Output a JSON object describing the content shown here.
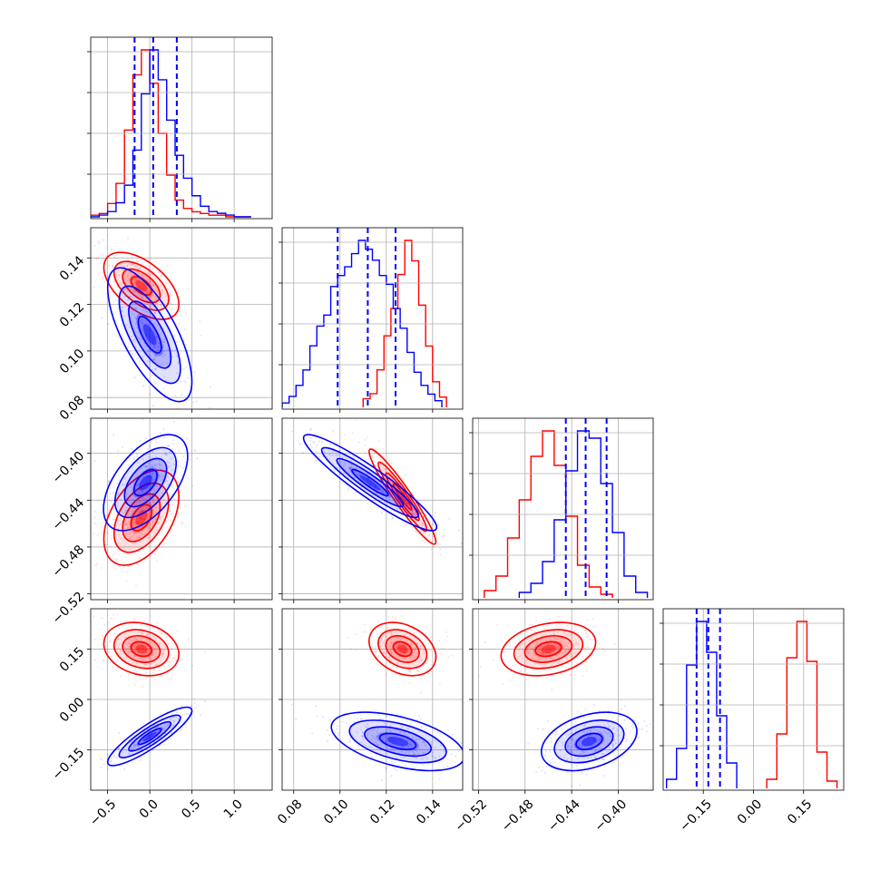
{
  "chart_data": {
    "type": "corner",
    "grid": true,
    "colors": {
      "red": "#ff0000",
      "blue": "#0000ff",
      "grid": "#b0b0b0"
    },
    "parameters": [
      {
        "id": "p0",
        "range": [
          -0.7,
          1.45
        ],
        "ticks": [
          "−0.5",
          "0.0",
          "0.5",
          "1.0"
        ],
        "tick_values": [
          -0.5,
          0.0,
          0.5,
          1.0
        ]
      },
      {
        "id": "p1",
        "range": [
          0.075,
          0.153
        ],
        "ticks": [
          "0.08",
          "0.10",
          "0.12",
          "0.14"
        ],
        "tick_values": [
          0.08,
          0.1,
          0.12,
          0.14
        ]
      },
      {
        "id": "p2",
        "range": [
          -0.525,
          -0.37
        ],
        "ticks": [
          "−0.52",
          "−0.48",
          "−0.44",
          "−0.40"
        ],
        "tick_values": [
          -0.52,
          -0.48,
          -0.44,
          -0.4
        ]
      },
      {
        "id": "p3",
        "range": [
          -0.27,
          0.27
        ],
        "ticks": [
          "−0.15",
          "0.00",
          "0.15"
        ],
        "tick_values": [
          -0.15,
          0.0,
          0.15
        ]
      }
    ],
    "series": [
      {
        "color": "#ff0000",
        "marginals": [
          {
            "edges": [
              -0.7,
              -0.6,
              -0.5,
              -0.4,
              -0.3,
              -0.2,
              -0.1,
              0.0,
              0.1,
              0.2,
              0.3,
              0.4,
              0.5,
              0.6,
              0.7,
              0.8,
              0.9,
              1.0,
              1.1,
              1.2
            ],
            "counts": [
              1,
              2,
              8,
              20,
              52,
              85,
              100,
              80,
              50,
              25,
              10,
              5,
              3,
              2,
              1,
              1,
              0,
              0,
              0
            ]
          },
          {
            "edges": [
              0.11,
              0.113,
              0.116,
              0.119,
              0.122,
              0.125,
              0.128,
              0.131,
              0.134,
              0.137,
              0.14,
              0.143,
              0.146
            ],
            "counts": [
              5,
              8,
              22,
              42,
              58,
              78,
              98,
              86,
              60,
              36,
              15,
              6
            ]
          },
          {
            "edges": [
              -0.515,
              -0.505,
              -0.495,
              -0.485,
              -0.475,
              -0.465,
              -0.455,
              -0.445,
              -0.435,
              -0.425,
              -0.415,
              -0.405
            ],
            "counts": [
              4,
              12,
              33,
              54,
              78,
              92,
              73,
              45,
              18,
              6,
              2
            ]
          },
          {
            "edges": [
              0.04,
              0.07,
              0.1,
              0.13,
              0.16,
              0.19,
              0.22,
              0.25
            ],
            "counts": [
              5,
              30,
              72,
              92,
              70,
              20,
              4
            ]
          }
        ],
        "peaks": [
          [
            -0.1,
            0.128
          ],
          [
            -0.1,
            -0.455
          ],
          [
            -0.1,
            0.15
          ],
          [
            0.127,
            -0.437
          ],
          [
            0.127,
            0.15
          ],
          [
            -0.46,
            0.15
          ]
        ]
      },
      {
        "color": "#0000ff",
        "marginals": [
          {
            "edges": [
              -0.7,
              -0.6,
              -0.5,
              -0.4,
              -0.3,
              -0.2,
              -0.1,
              0.0,
              0.1,
              0.2,
              0.3,
              0.4,
              0.5,
              0.6,
              0.7,
              0.8,
              0.9,
              1.0,
              1.1,
              1.2
            ],
            "counts": [
              0,
              1,
              3,
              8,
              18,
              38,
              70,
              95,
              78,
              55,
              35,
              22,
              12,
              6,
              3,
              2,
              1,
              0,
              0
            ]
          },
          {
            "edges": [
              0.075,
              0.078,
              0.081,
              0.084,
              0.087,
              0.09,
              0.093,
              0.096,
              0.099,
              0.102,
              0.105,
              0.108,
              0.111,
              0.114,
              0.117,
              0.12,
              0.123,
              0.126,
              0.129,
              0.132,
              0.135,
              0.138,
              0.141,
              0.144
            ],
            "counts": [
              2,
              5,
              10,
              17,
              28,
              37,
              42,
              55,
              60,
              64,
              70,
              76,
              72,
              67,
              60,
              56,
              45,
              36,
              25,
              16,
              10,
              6,
              3
            ]
          },
          {
            "edges": [
              -0.485,
              -0.475,
              -0.465,
              -0.455,
              -0.445,
              -0.435,
              -0.425,
              -0.415,
              -0.405,
              -0.395,
              -0.385,
              -0.375
            ],
            "counts": [
              3,
              8,
              20,
              43,
              70,
              92,
              88,
              63,
              36,
              12,
              3
            ]
          },
          {
            "edges": [
              -0.26,
              -0.23,
              -0.2,
              -0.17,
              -0.14,
              -0.11,
              -0.08,
              -0.05
            ],
            "counts": [
              5,
              22,
              68,
              92,
              75,
              40,
              14
            ]
          }
        ],
        "quantiles": [
          [
            -0.18,
            0.04,
            0.32
          ],
          [
            0.099,
            0.112,
            0.124
          ],
          [
            -0.445,
            -0.428,
            -0.41
          ],
          [
            -0.17,
            -0.135,
            -0.1
          ]
        ],
        "peaks": [
          [
            0.0,
            0.107
          ],
          [
            -0.05,
            -0.425
          ],
          [
            0.0,
            -0.11
          ],
          [
            0.113,
            -0.425
          ],
          [
            0.125,
            -0.125
          ],
          [
            -0.425,
            -0.125
          ]
        ]
      }
    ]
  }
}
